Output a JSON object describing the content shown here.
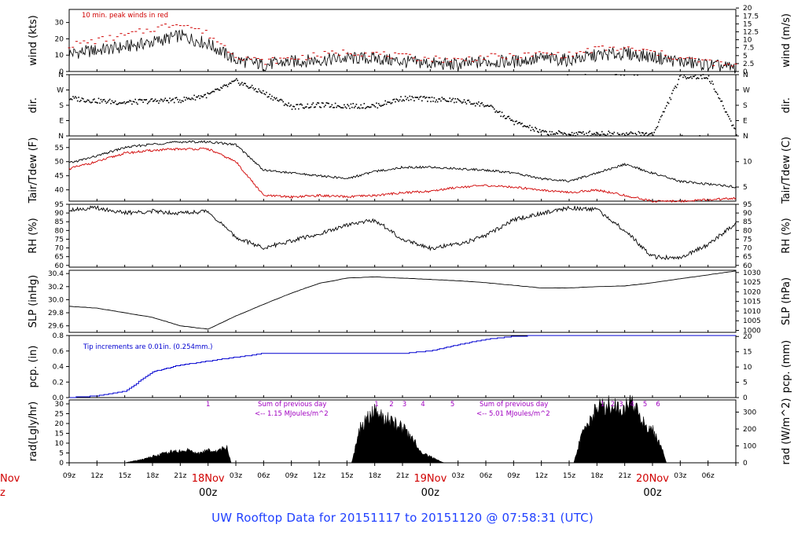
{
  "footer": {
    "title": "UW Rooftop Data for 20151117  to  20151120 @ 07:58:31  (UTC)"
  },
  "chart_data": [
    {
      "type": "line",
      "panel": "wind",
      "ylabel": "wind (kts)",
      "ylabel_right": "wind (m/s)",
      "ylim": [
        0,
        38
      ],
      "yticks": [
        0,
        10,
        20,
        30
      ],
      "yticks_right": [
        0,
        2.5,
        5,
        7.5,
        10,
        12.5,
        15,
        17.5,
        20
      ],
      "yticks_right_labels": [
        "0",
        "2.5",
        "5",
        "7.5",
        "10",
        "12.5",
        "15",
        "17.5",
        "20"
      ],
      "annotation": "10 min. peak winds in red",
      "x_hours": [
        0,
        3,
        6,
        9,
        12,
        15,
        18,
        21,
        24,
        27,
        30,
        33,
        36,
        39,
        42,
        45,
        48,
        51,
        54,
        57,
        60,
        63,
        66,
        69,
        72
      ],
      "series": [
        {
          "color": "#000000",
          "values": [
            11,
            13,
            15,
            18,
            22,
            17,
            7,
            4,
            6,
            7,
            8,
            8,
            6,
            5,
            4,
            6,
            6,
            8,
            7,
            10,
            11,
            9,
            6,
            4,
            2
          ]
        },
        {
          "color": "#d00000",
          "values": [
            16,
            19,
            22,
            26,
            30,
            23,
            10,
            6,
            8,
            10,
            12,
            11,
            9,
            8,
            7,
            9,
            9,
            11,
            10,
            14,
            14,
            12,
            8,
            6,
            3
          ]
        }
      ],
      "colors": {
        "wind": "#000000",
        "peak": "#d00000"
      }
    },
    {
      "type": "scatter",
      "panel": "dir",
      "ylabel": "dir.",
      "ylabel_right": "dir.",
      "yticks_labels": [
        "N",
        "E",
        "S",
        "W",
        "N"
      ],
      "ylim": [
        0,
        360
      ],
      "x_hours": [
        0,
        3,
        6,
        9,
        12,
        15,
        18,
        21,
        24,
        27,
        30,
        33,
        36,
        39,
        42,
        45,
        48,
        51,
        54,
        57,
        60,
        63,
        66,
        69,
        72
      ],
      "values": [
        220,
        205,
        195,
        205,
        210,
        240,
        320,
        250,
        170,
        180,
        175,
        175,
        220,
        215,
        205,
        180,
        80,
        20,
        10,
        15,
        10,
        10,
        350,
        345,
        20
      ]
    },
    {
      "type": "line",
      "panel": "temperature",
      "ylabel": "Tair/Tdew (F)",
      "ylabel_right": "Tair/Tdew (C)",
      "ylim": [
        36,
        58
      ],
      "yticks": [
        40,
        45,
        50,
        55
      ],
      "yticks_right": [
        5,
        10
      ],
      "x_hours": [
        0,
        3,
        6,
        9,
        12,
        15,
        18,
        21,
        24,
        27,
        30,
        33,
        36,
        39,
        42,
        45,
        48,
        51,
        54,
        57,
        60,
        63,
        66,
        69,
        72
      ],
      "series": [
        {
          "name": "Tair",
          "color": "#000000",
          "values": [
            49.5,
            52,
            55,
            56.2,
            57,
            57,
            56,
            47,
            46,
            45,
            44,
            46.5,
            48,
            48,
            47.5,
            47,
            46,
            44,
            43,
            46,
            49,
            46,
            43,
            42,
            41
          ]
        },
        {
          "name": "Tdew",
          "color": "#d00000",
          "values": [
            47.5,
            50,
            53,
            54,
            54.5,
            54.5,
            50,
            38,
            37.5,
            38,
            37.5,
            38,
            39,
            39.5,
            41,
            41.5,
            41,
            40,
            39,
            40,
            38,
            36,
            36,
            36.5,
            37
          ]
        }
      ]
    },
    {
      "type": "line",
      "panel": "rh",
      "ylabel": "RH (%)",
      "ylabel_right": "RH (%)",
      "ylim": [
        59,
        95
      ],
      "yticks": [
        60,
        65,
        70,
        75,
        80,
        85,
        90,
        95
      ],
      "x_hours": [
        0,
        3,
        6,
        9,
        12,
        15,
        18,
        21,
        24,
        27,
        30,
        33,
        36,
        39,
        42,
        45,
        48,
        51,
        54,
        57,
        60,
        63,
        66,
        69,
        72
      ],
      "values": [
        92,
        93,
        90,
        91,
        90,
        91,
        76,
        70,
        74,
        78,
        83,
        86,
        75,
        70,
        72,
        77,
        86,
        90,
        93,
        92,
        80,
        65,
        64,
        72,
        84
      ]
    },
    {
      "type": "line",
      "panel": "slp",
      "ylabel": "SLP (inHg)",
      "ylabel_right": "SLP (hPa)",
      "ylim": [
        29.5,
        30.45
      ],
      "yticks": [
        29.6,
        29.8,
        30.0,
        30.2,
        30.4
      ],
      "yticks_labels": [
        "29.6",
        "29.8",
        "30.0",
        "30.2",
        "30.4"
      ],
      "yticks_right": [
        1000,
        1005,
        1010,
        1015,
        1020,
        1025,
        1030
      ],
      "x_hours": [
        0,
        3,
        6,
        9,
        12,
        15,
        18,
        21,
        24,
        27,
        30,
        33,
        36,
        39,
        42,
        45,
        48,
        51,
        54,
        57,
        60,
        63,
        66,
        69,
        72
      ],
      "values": [
        29.9,
        29.87,
        29.8,
        29.73,
        29.6,
        29.55,
        29.75,
        29.93,
        30.1,
        30.25,
        30.33,
        30.35,
        30.33,
        30.31,
        30.29,
        30.26,
        30.22,
        30.18,
        30.18,
        30.2,
        30.21,
        30.26,
        30.32,
        30.38,
        30.44
      ]
    },
    {
      "type": "line",
      "panel": "precip",
      "ylabel": "pcp. (in)",
      "ylabel_right": "pcp. (mm)",
      "ylim": [
        0,
        0.8
      ],
      "yticks": [
        0.0,
        0.2,
        0.4,
        0.6,
        0.8
      ],
      "yticks_labels": [
        "0.0",
        "0.2",
        "0.4",
        "0.6",
        "0.8"
      ],
      "yticks_right": [
        0,
        5,
        10,
        15,
        20
      ],
      "annotation": "Tip increments are 0.01in. (0.254mm.)",
      "color": "#0000d0",
      "x_hours": [
        0,
        3,
        6,
        9,
        12,
        15,
        18,
        21,
        24,
        27,
        30,
        33,
        36,
        39,
        42,
        45,
        48,
        51,
        54,
        57,
        60,
        63,
        66,
        69,
        72
      ],
      "values": [
        0,
        0.02,
        0.08,
        0.33,
        0.42,
        0.47,
        0.52,
        0.57,
        0.57,
        0.57,
        0.57,
        0.57,
        0.57,
        0.6,
        0.68,
        0.75,
        0.79,
        0.8,
        0.8,
        0.8,
        0.8,
        0.8,
        0.8,
        0.8,
        0.8
      ]
    },
    {
      "type": "area",
      "panel": "radiation",
      "ylabel": "rad(Lgly/hr)",
      "ylabel_right": "rad (W/m^2)",
      "ylim": [
        0,
        32
      ],
      "yticks": [
        0,
        5,
        10,
        15,
        20,
        25,
        30
      ],
      "yticks_right": [
        0,
        100,
        200,
        300
      ],
      "annotations": [
        "Sum of previous day",
        "<-- 1.15 MJoules/m^2",
        "Sum of previous day",
        "<-- 5.01 MJoules/m^2"
      ],
      "marker_labels": [
        "1",
        "1",
        "2",
        "3",
        "4",
        "5",
        "1",
        "2",
        "3",
        "4",
        "5",
        "6"
      ],
      "x_hours": [
        6,
        8,
        10,
        11,
        13,
        14,
        15,
        16,
        17,
        17.5,
        30.5,
        31.5,
        33,
        34,
        35,
        36,
        37,
        38,
        40,
        40.5,
        54.5,
        55.5,
        57,
        58,
        59,
        60,
        61,
        62,
        63,
        64,
        64.5
      ],
      "values": [
        0,
        2,
        5,
        6,
        7,
        5,
        7,
        6,
        9,
        0,
        0,
        20,
        28,
        25,
        22,
        19,
        14,
        6,
        1,
        0,
        0,
        18,
        30,
        32,
        31,
        30,
        33,
        22,
        18,
        8,
        0
      ]
    }
  ],
  "x_axis": {
    "start_hour_label": "09z",
    "hour_tick_labels": [
      "09z",
      "12z",
      "15z",
      "18z",
      "21z",
      "03z",
      "06z",
      "09z",
      "12z",
      "15z",
      "18z",
      "21z",
      "03z",
      "06z",
      "09z",
      "12z",
      "15z",
      "18z",
      "21z",
      "03z",
      "06z"
    ],
    "day_labels": [
      {
        "date": "18Nov",
        "time": "00z"
      },
      {
        "date": "19Nov",
        "time": "00z"
      },
      {
        "date": "20Nov",
        "time": "00z"
      }
    ],
    "cut_off_labels": {
      "date": "Nov",
      "time": "z"
    }
  }
}
